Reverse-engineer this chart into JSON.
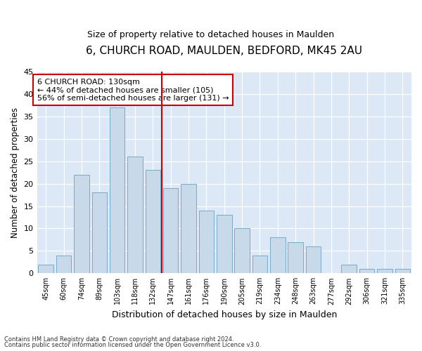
{
  "title1": "6, CHURCH ROAD, MAULDEN, BEDFORD, MK45 2AU",
  "title2": "Size of property relative to detached houses in Maulden",
  "xlabel": "Distribution of detached houses by size in Maulden",
  "ylabel": "Number of detached properties",
  "categories": [
    "45sqm",
    "60sqm",
    "74sqm",
    "89sqm",
    "103sqm",
    "118sqm",
    "132sqm",
    "147sqm",
    "161sqm",
    "176sqm",
    "190sqm",
    "205sqm",
    "219sqm",
    "234sqm",
    "248sqm",
    "263sqm",
    "277sqm",
    "292sqm",
    "306sqm",
    "321sqm",
    "335sqm"
  ],
  "values": [
    2,
    4,
    22,
    18,
    37,
    26,
    23,
    19,
    20,
    14,
    13,
    10,
    4,
    8,
    7,
    6,
    0,
    2,
    1,
    1,
    1
  ],
  "bar_color": "#c8daea",
  "bar_edge_color": "#7aaac8",
  "vline_x": 6.5,
  "vline_color": "#cc0000",
  "annotation_text": "6 CHURCH ROAD: 130sqm\n← 44% of detached houses are smaller (105)\n56% of semi-detached houses are larger (131) →",
  "annotation_box_color": "#ffffff",
  "annotation_box_edge_color": "#cc0000",
  "ylim": [
    0,
    45
  ],
  "yticks": [
    0,
    5,
    10,
    15,
    20,
    25,
    30,
    35,
    40,
    45
  ],
  "footer1": "Contains HM Land Registry data © Crown copyright and database right 2024.",
  "footer2": "Contains public sector information licensed under the Open Government Licence v3.0.",
  "fig_bg_color": "#ffffff",
  "plot_bg_color": "#dce8f5"
}
